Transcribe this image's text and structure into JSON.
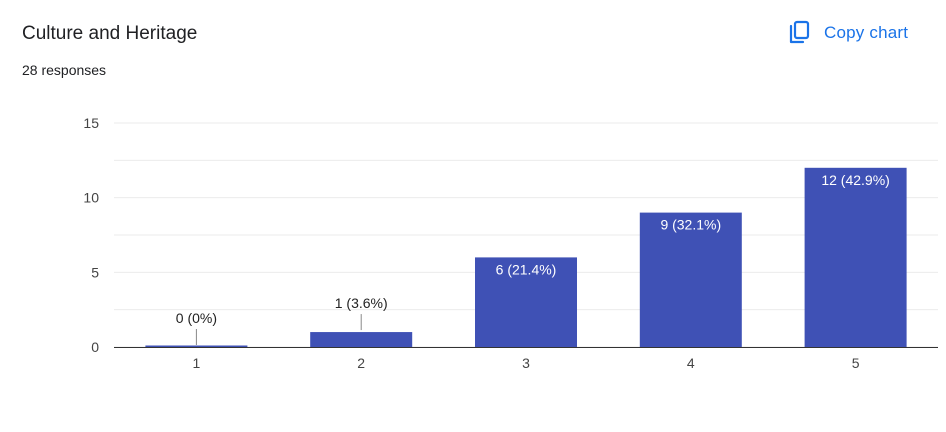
{
  "header": {
    "title": "Culture and Heritage",
    "responses": "28 responses",
    "copy_label": "Copy chart",
    "copy_icon": "copy-icon"
  },
  "colors": {
    "bar": "#3f51b5",
    "accent": "#1a73e8",
    "grid": "#ebebeb",
    "axis": "#333333"
  },
  "chart_data": {
    "type": "bar",
    "title": "Culture and Heritage",
    "categories": [
      "1",
      "2",
      "3",
      "4",
      "5"
    ],
    "values": [
      0,
      1,
      6,
      9,
      12
    ],
    "labels": [
      "0 (0%)",
      "1 (3.6%)",
      "6 (21.4%)",
      "9 (32.1%)",
      "12 (42.9%)"
    ],
    "ylim": [
      0,
      15
    ],
    "yticks": [
      "0",
      "5",
      "10",
      "15"
    ],
    "grid": true,
    "legend": "none"
  }
}
